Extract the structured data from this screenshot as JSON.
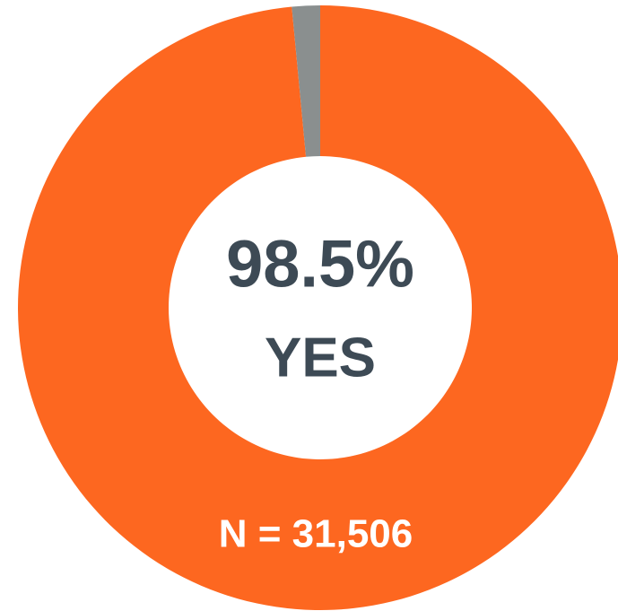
{
  "chart_data": {
    "type": "donut",
    "categories": [
      "YES",
      null
    ],
    "values": [
      98.5,
      1.5
    ],
    "value_labels": [
      "98.5%",
      null
    ],
    "colors": [
      "#fd6720",
      "#8a8f8f"
    ],
    "annotation": "N = 31,506"
  }
}
